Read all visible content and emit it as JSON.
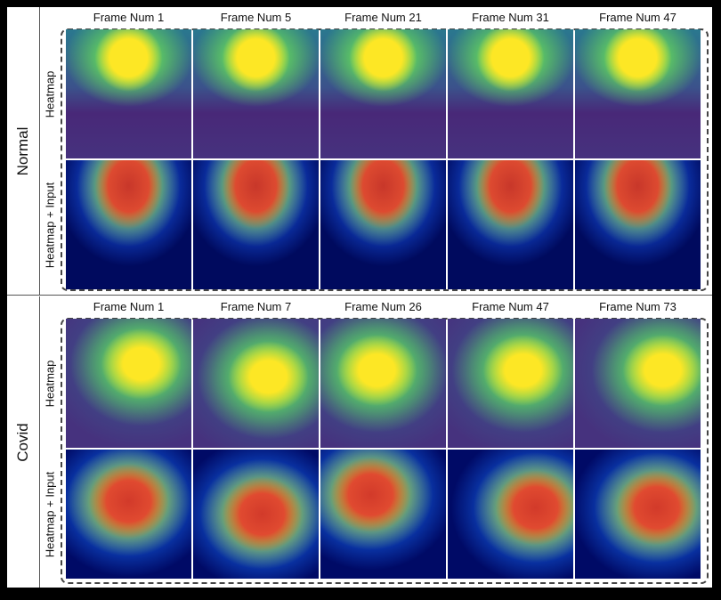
{
  "colors": {
    "heatmap_low": "#46327e",
    "heatmap_high": "#fde725",
    "overlay_low": "#000a66",
    "overlay_high": "#d23a2a"
  },
  "row_labels": {
    "heatmap": "Heatmap",
    "overlay": "Heatmap + Input"
  },
  "groups": [
    {
      "label": "Normal",
      "frames": [
        "Frame Num 1",
        "Frame Num 5",
        "Frame Num 21",
        "Frame Num 31",
        "Frame Num 47"
      ]
    },
    {
      "label": "Covid",
      "frames": [
        "Frame Num 1",
        "Frame Num 7",
        "Frame Num 26",
        "Frame Num 47",
        "Frame Num 73"
      ]
    }
  ]
}
